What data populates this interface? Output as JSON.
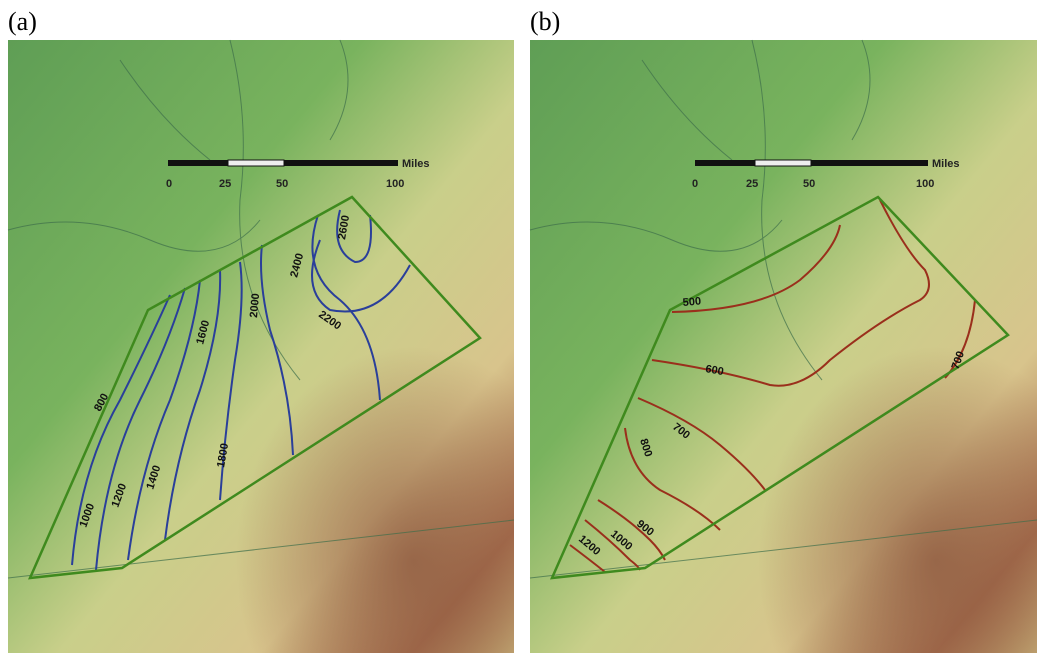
{
  "panels": [
    {
      "label": "(a)",
      "scale_bar": {
        "ticks": [
          0,
          25,
          50,
          100
        ],
        "unit": "Miles"
      },
      "contour_labels": [
        800,
        1000,
        1200,
        1400,
        1600,
        1800,
        2000,
        2400,
        2600,
        2200
      ]
    },
    {
      "label": "(b)",
      "scale_bar": {
        "ticks": [
          0,
          25,
          50,
          100
        ],
        "unit": "Miles"
      },
      "contour_labels": [
        500,
        600,
        700,
        800,
        900,
        1000,
        1200,
        700
      ]
    }
  ]
}
